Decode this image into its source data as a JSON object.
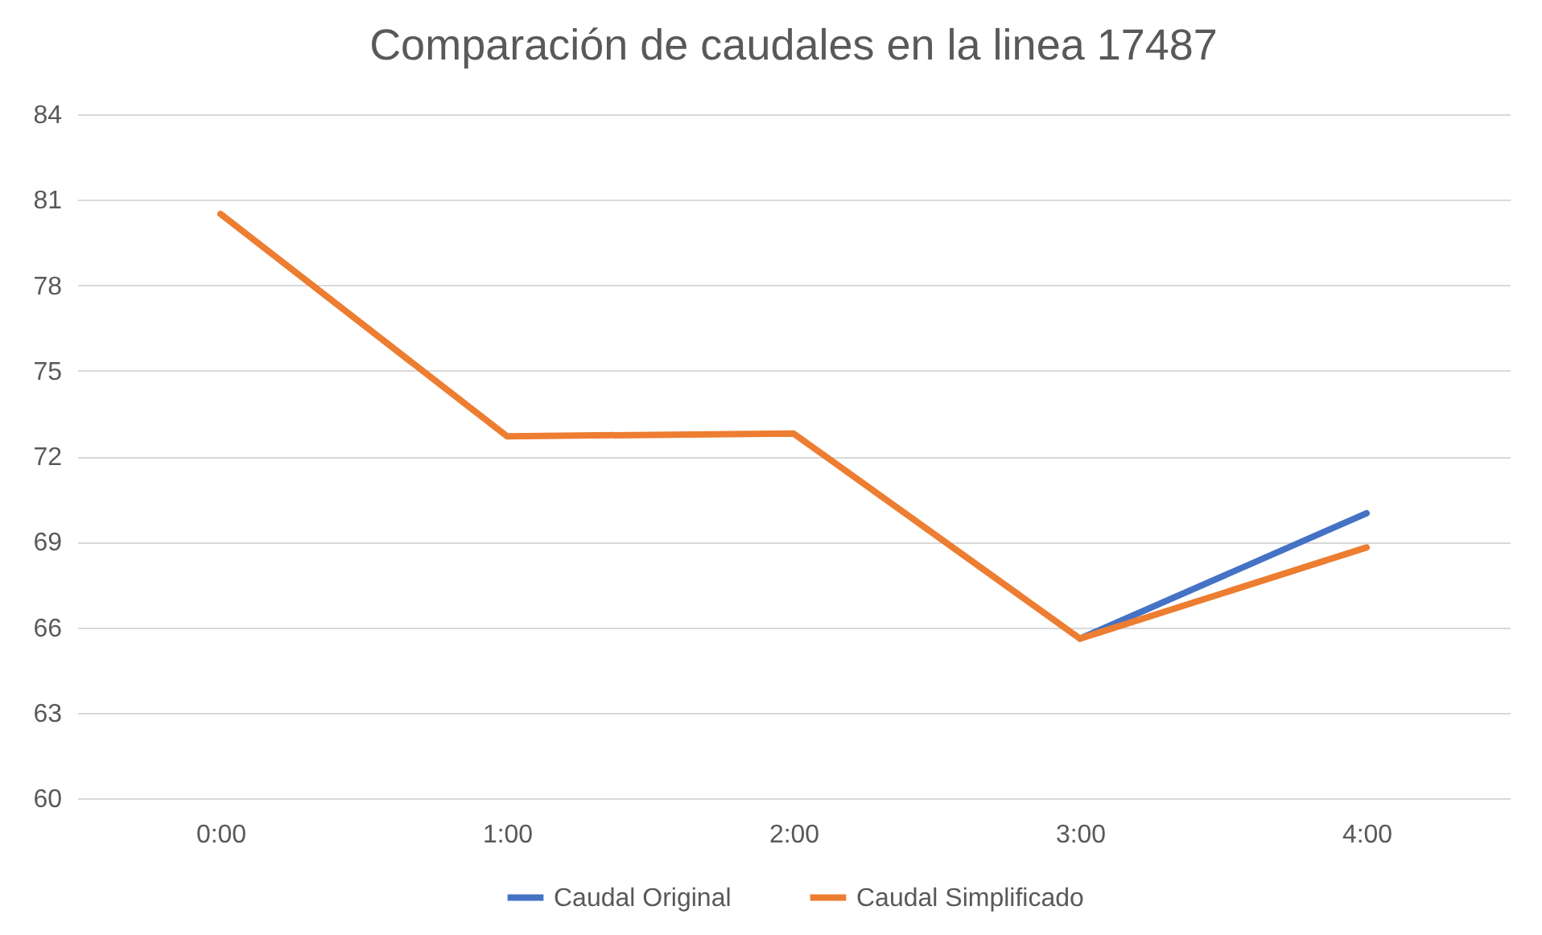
{
  "chart_data": {
    "type": "line",
    "title": "Comparación de caudales en la linea 17487",
    "categories": [
      "0:00",
      "1:00",
      "2:00",
      "3:00",
      "4:00"
    ],
    "series": [
      {
        "name": "Caudal Original",
        "color": "#4472c4",
        "values": [
          null,
          null,
          null,
          65.6,
          70.0
        ]
      },
      {
        "name": "Caudal Simplificado",
        "color": "#ed7d31",
        "values": [
          80.5,
          72.7,
          72.8,
          65.6,
          68.8
        ]
      }
    ],
    "ylim": [
      60,
      84
    ],
    "yticks": [
      60,
      63,
      66,
      69,
      72,
      75,
      78,
      81,
      84
    ],
    "grid": "y",
    "legend": "bottom"
  }
}
